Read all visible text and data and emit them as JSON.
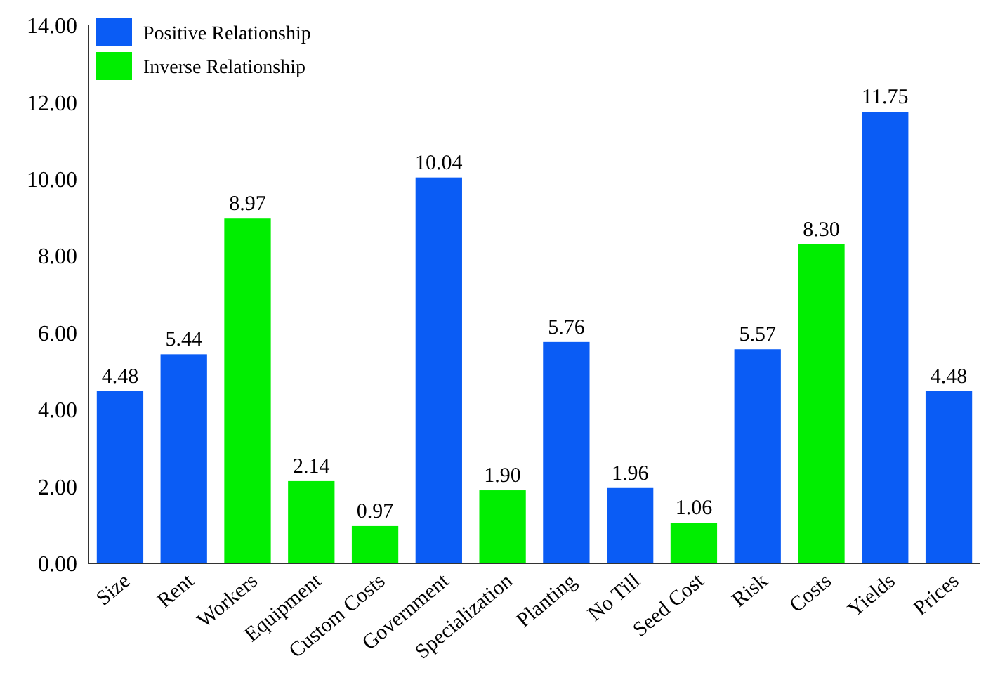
{
  "chart_data": {
    "type": "bar",
    "categories": [
      "Size",
      "Rent",
      "Workers",
      "Equipment",
      "Custom Costs",
      "Government",
      "Specialization",
      "Planting",
      "No Till",
      "Seed Cost",
      "Risk",
      "Costs",
      "Yields",
      "Prices"
    ],
    "series": [
      {
        "name": "Positive Relationship",
        "color": "#0a5cf5",
        "values": [
          4.48,
          5.44,
          null,
          null,
          null,
          10.04,
          null,
          5.76,
          1.96,
          null,
          5.57,
          null,
          11.75,
          4.48
        ],
        "value_labels": [
          "4.48",
          "5.44",
          null,
          null,
          null,
          "10.04",
          null,
          "5.76",
          "1.96",
          null,
          "5.57",
          null,
          "11.75",
          "4.48"
        ]
      },
      {
        "name": "Inverse Relationship",
        "color": "#00ee00",
        "values": [
          null,
          null,
          8.97,
          2.14,
          0.97,
          null,
          1.9,
          null,
          null,
          1.06,
          null,
          8.3,
          null,
          null
        ],
        "value_labels": [
          null,
          null,
          "8.97",
          "2.14",
          "0.97",
          null,
          "1.90",
          null,
          null,
          "1.06",
          null,
          "8.30",
          null,
          null
        ]
      }
    ],
    "ylim": [
      0,
      14
    ],
    "yticks": [
      {
        "value": 0,
        "label": "0.00"
      },
      {
        "value": 2,
        "label": "2.00"
      },
      {
        "value": 4,
        "label": "4.00"
      },
      {
        "value": 6,
        "label": "6.00"
      },
      {
        "value": 8,
        "label": "8.00"
      },
      {
        "value": 10,
        "label": "10.00"
      },
      {
        "value": 12,
        "label": "12.00"
      },
      {
        "value": 14,
        "label": "14.00"
      }
    ],
    "legend": "top left",
    "grid": false
  }
}
